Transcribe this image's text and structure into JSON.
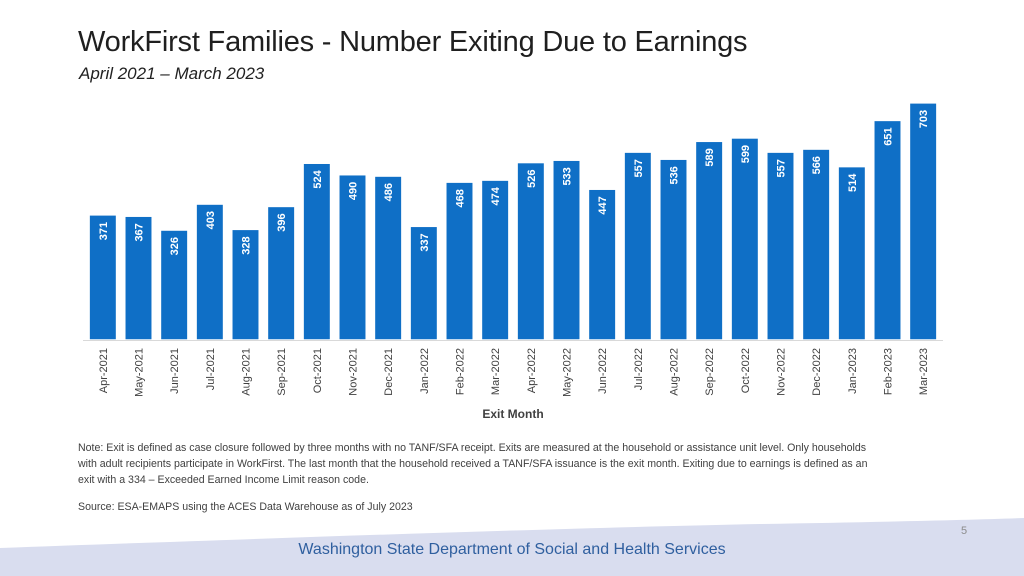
{
  "header": {
    "title": "WorkFirst Families - Number Exiting Due to Earnings",
    "subtitle": "April 2021 – March 2023"
  },
  "chart_data": {
    "type": "bar",
    "title": "WorkFirst Families - Number Exiting Due to Earnings",
    "xlabel": "Exit Month",
    "ylabel": "",
    "ylim": [
      0,
      750
    ],
    "grid": false,
    "legend": "none",
    "data_labels": true,
    "categories": [
      "Apr-2021",
      "May-2021",
      "Jun-2021",
      "Jul-2021",
      "Aug-2021",
      "Sep-2021",
      "Oct-2021",
      "Nov-2021",
      "Dec-2021",
      "Jan-2022",
      "Feb-2022",
      "Mar-2022",
      "Apr-2022",
      "May-2022",
      "Jun-2022",
      "Jul-2022",
      "Aug-2022",
      "Sep-2022",
      "Oct-2022",
      "Nov-2022",
      "Dec-2022",
      "Jan-2023",
      "Feb-2023",
      "Mar-2023"
    ],
    "values": [
      371,
      367,
      326,
      403,
      328,
      396,
      524,
      490,
      486,
      337,
      468,
      474,
      526,
      533,
      447,
      557,
      536,
      589,
      599,
      557,
      566,
      514,
      651,
      703
    ],
    "colors": {
      "bar": "#0f6fc6",
      "bar_edge": "#ffffff",
      "baseline": "#d9d9d9"
    }
  },
  "notes": {
    "note": "Note: Exit is defined as case closure followed by three months with no TANF/SFA receipt. Exits are measured at the household or assistance unit level. Only households with adult recipients participate in WorkFirst. The last month that the household received a TANF/SFA issuance is the exit month. Exiting due to earnings is defined as an exit with a 334 – Exceeded Earned Income Limit reason code.",
    "source": "Source: ESA-EMAPS using the ACES Data Warehouse as of July 2023"
  },
  "footer": {
    "page_number": "5",
    "organization": "Washington State Department of Social and Health Services",
    "wave_color": "#d9ddef"
  }
}
